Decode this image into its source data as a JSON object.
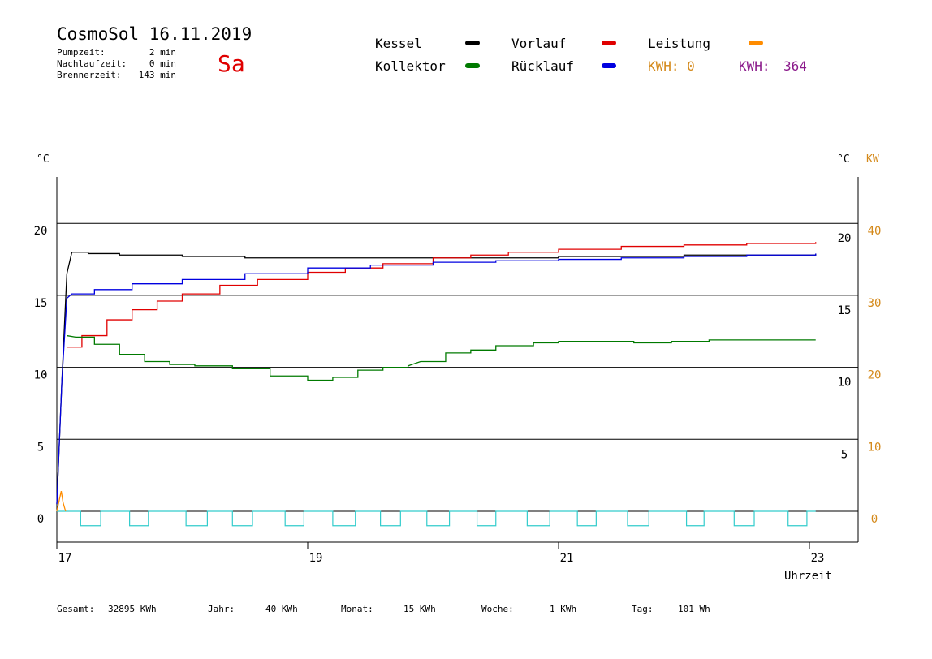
{
  "header": {
    "title": "CosmoSol 16.11.2019",
    "day": "Sa",
    "stats": [
      {
        "label": "Pumpzeit:",
        "value": "2 min"
      },
      {
        "label": "Nachlaufzeit:",
        "value": "0 min"
      },
      {
        "label": "Brennerzeit:",
        "value": "143 min"
      }
    ]
  },
  "legend": {
    "kessel": "Kessel",
    "kollektor": "Kollektor",
    "vorlauf": "Vorlauf",
    "ruecklauf": "Rücklauf",
    "leistung": "Leistung",
    "kwh1": "KWH: 0",
    "kwh2_label": "KWH:",
    "kwh2_value": "364"
  },
  "axes": {
    "left_unit": "°C",
    "right_unit": "°C",
    "kw_unit": "KW",
    "xlabel": "Uhrzeit"
  },
  "footer": [
    {
      "label": "Gesamt:",
      "value": "32895 KWh"
    },
    {
      "label": "Jahr:",
      "value": "40 KWh"
    },
    {
      "label": "Monat:",
      "value": "15 KWh"
    },
    {
      "label": "Woche:",
      "value": "1 KWh"
    },
    {
      "label": "Tag:",
      "value": "101 Wh"
    }
  ],
  "chart_data": {
    "type": "line",
    "title": "CosmoSol 16.11.2019",
    "xlabel": "Uhrzeit",
    "ylabel": "°C",
    "y2label": "KW",
    "xlim": [
      17,
      23.35
    ],
    "ylim": [
      -2,
      23.5
    ],
    "x_ticks": [
      17,
      19,
      21,
      23
    ],
    "y_ticks_left": [
      0,
      5,
      10,
      15,
      20
    ],
    "y_ticks_right_c": [
      5,
      10,
      15,
      20
    ],
    "y_ticks_kw": [
      0,
      10,
      20,
      30,
      40
    ],
    "grid": "horizontal",
    "colors": {
      "kessel": "#000000",
      "kollektor": "#007a00",
      "vorlauf": "#e00000",
      "ruecklauf": "#0000e0",
      "leistung": "#ff8c00",
      "pump": "#33cccc",
      "kwh2": "#8b1a8b"
    },
    "series": [
      {
        "name": "Kessel",
        "key": "kessel",
        "x": [
          17.0,
          17.04,
          17.08,
          17.12,
          17.25,
          17.5,
          18.0,
          18.5,
          19.0,
          19.5,
          20.0,
          20.5,
          21.0,
          21.5,
          22.0,
          22.5,
          23.05
        ],
        "y": [
          0.5,
          9.0,
          16.5,
          18.0,
          17.9,
          17.8,
          17.7,
          17.6,
          17.6,
          17.6,
          17.6,
          17.6,
          17.7,
          17.7,
          17.8,
          17.8,
          17.9
        ]
      },
      {
        "name": "Vorlauf",
        "key": "vorlauf",
        "x": [
          17.08,
          17.2,
          17.4,
          17.6,
          17.8,
          18.0,
          18.3,
          18.6,
          19.0,
          19.3,
          19.6,
          20.0,
          20.3,
          20.6,
          21.0,
          21.5,
          22.0,
          22.5,
          23.05
        ],
        "y": [
          11.4,
          12.2,
          13.3,
          14.0,
          14.6,
          15.1,
          15.7,
          16.1,
          16.6,
          16.9,
          17.2,
          17.6,
          17.8,
          18.0,
          18.2,
          18.4,
          18.5,
          18.6,
          18.7
        ]
      },
      {
        "name": "Rücklauf",
        "key": "ruecklauf",
        "x": [
          17.0,
          17.04,
          17.08,
          17.12,
          17.3,
          17.6,
          18.0,
          18.5,
          19.0,
          19.5,
          20.0,
          20.5,
          21.0,
          21.5,
          22.0,
          22.5,
          23.05
        ],
        "y": [
          0.5,
          9.0,
          14.8,
          15.1,
          15.4,
          15.8,
          16.1,
          16.5,
          16.9,
          17.1,
          17.3,
          17.4,
          17.5,
          17.6,
          17.7,
          17.8,
          17.9
        ]
      },
      {
        "name": "Kollektor",
        "key": "kollektor",
        "x": [
          17.08,
          17.15,
          17.3,
          17.5,
          17.7,
          17.9,
          18.1,
          18.4,
          18.7,
          19.0,
          19.2,
          19.4,
          19.6,
          19.8,
          19.9,
          20.1,
          20.3,
          20.5,
          20.8,
          21.0,
          21.3,
          21.6,
          21.9,
          22.2,
          22.6,
          23.05
        ],
        "y": [
          12.2,
          12.1,
          11.6,
          10.9,
          10.4,
          10.2,
          10.1,
          9.9,
          9.4,
          9.1,
          9.3,
          9.8,
          10.0,
          10.1,
          10.4,
          11.0,
          11.2,
          11.5,
          11.7,
          11.8,
          11.8,
          11.7,
          11.8,
          11.9,
          11.9,
          11.9
        ]
      },
      {
        "name": "Leistung",
        "key": "leistung",
        "x": [
          17.0,
          17.02,
          17.035,
          17.05,
          17.07
        ],
        "y": [
          0,
          0.8,
          1.4,
          0.6,
          0
        ]
      }
    ],
    "pump_cycles": [
      [
        17.19,
        17.35
      ],
      [
        17.58,
        17.73
      ],
      [
        18.03,
        18.2
      ],
      [
        18.4,
        18.56
      ],
      [
        18.82,
        18.97
      ],
      [
        19.2,
        19.38
      ],
      [
        19.58,
        19.74
      ],
      [
        19.95,
        20.13
      ],
      [
        20.35,
        20.5
      ],
      [
        20.75,
        20.93
      ],
      [
        21.15,
        21.3
      ],
      [
        21.55,
        21.72
      ],
      [
        22.02,
        22.16
      ],
      [
        22.4,
        22.56
      ],
      [
        22.83,
        22.98
      ]
    ],
    "pump_line_y": 0,
    "pump_low_y": -1
  }
}
